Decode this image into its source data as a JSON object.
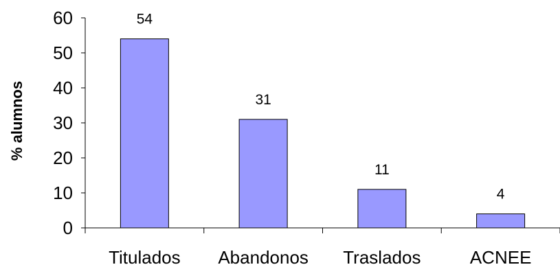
{
  "chart_data": {
    "type": "bar",
    "categories": [
      "Titulados",
      "Abandonos",
      "Traslados",
      "ACNEE"
    ],
    "values": [
      54,
      31,
      11,
      4
    ],
    "data_labels": [
      "54",
      "31",
      "11",
      "4"
    ],
    "title": "",
    "xlabel": "",
    "ylabel": "% alumnos",
    "ylim": [
      0,
      60
    ],
    "yticks": [
      "0",
      "10",
      "20",
      "30",
      "40",
      "50",
      "60"
    ],
    "grid": false,
    "legend": "none",
    "colors": {
      "bar_fill": "#9999ff",
      "bar_stroke": "#000000",
      "axis": "#000000",
      "text": "#000000"
    }
  }
}
